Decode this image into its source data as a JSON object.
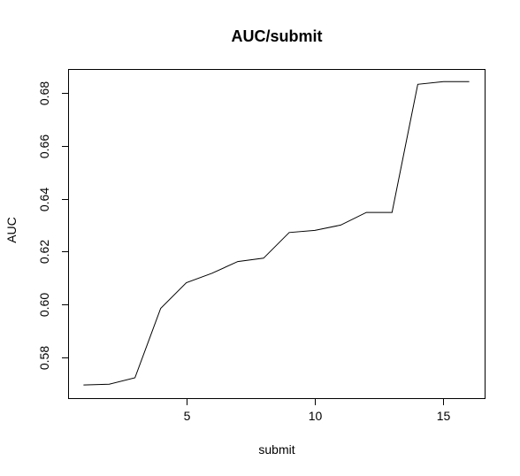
{
  "chart_data": {
    "type": "line",
    "title": "AUC/submit",
    "xlabel": "submit",
    "ylabel": "AUC",
    "xlim": [
      0.4,
      16.6
    ],
    "ylim": [
      0.5645,
      0.6891
    ],
    "xticks": [
      5,
      10,
      15
    ],
    "xtick_labels": [
      "5",
      "10",
      "15"
    ],
    "yticks": [
      0.58,
      0.6,
      0.62,
      0.64,
      0.66,
      0.68
    ],
    "ytick_labels": [
      "0.58",
      "0.60",
      "0.62",
      "0.64",
      "0.66",
      "0.68"
    ],
    "grid": false,
    "line_color": "#000000",
    "series": [
      {
        "x": [
          1,
          2,
          3,
          4,
          5,
          6,
          7,
          8,
          9,
          10,
          11,
          12,
          13,
          14,
          15,
          16
        ],
        "y": [
          0.5695,
          0.5698,
          0.5722,
          0.5985,
          0.6082,
          0.6118,
          0.6162,
          0.6175,
          0.6272,
          0.628,
          0.63,
          0.6348,
          0.6348,
          0.6833,
          0.6843,
          0.6843
        ]
      }
    ]
  }
}
